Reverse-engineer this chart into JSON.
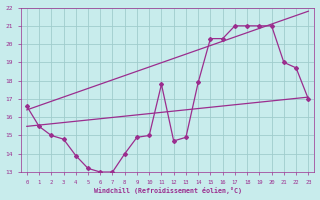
{
  "line1_x": [
    0,
    1,
    2,
    3,
    4,
    5,
    6,
    7,
    8,
    9,
    10,
    11,
    12,
    13,
    14,
    15,
    16,
    17,
    18,
    19,
    20,
    21,
    22,
    23
  ],
  "line1_y": [
    16.6,
    15.5,
    15.0,
    14.8,
    13.9,
    13.2,
    13.0,
    13.0,
    14.0,
    14.9,
    15.0,
    17.8,
    14.7,
    14.9,
    17.9,
    20.3,
    20.3,
    21.0,
    21.0,
    21.0,
    21.0,
    19.0,
    18.7,
    17.0
  ],
  "line2_x": [
    0,
    23
  ],
  "line2_y": [
    16.4,
    21.8
  ],
  "line3_x": [
    0,
    23
  ],
  "line3_y": [
    15.5,
    17.1
  ],
  "color": "#9B2D8E",
  "bg_color": "#C8ECEC",
  "grid_color": "#A0CCCC",
  "xlabel": "Windchill (Refroidissement éolien,°C)",
  "ylim": [
    13,
    22
  ],
  "xlim": [
    -0.5,
    23.5
  ],
  "yticks": [
    13,
    14,
    15,
    16,
    17,
    18,
    19,
    20,
    21,
    22
  ],
  "xticks": [
    0,
    1,
    2,
    3,
    4,
    5,
    6,
    7,
    8,
    9,
    10,
    11,
    12,
    13,
    14,
    15,
    16,
    17,
    18,
    19,
    20,
    21,
    22,
    23
  ]
}
